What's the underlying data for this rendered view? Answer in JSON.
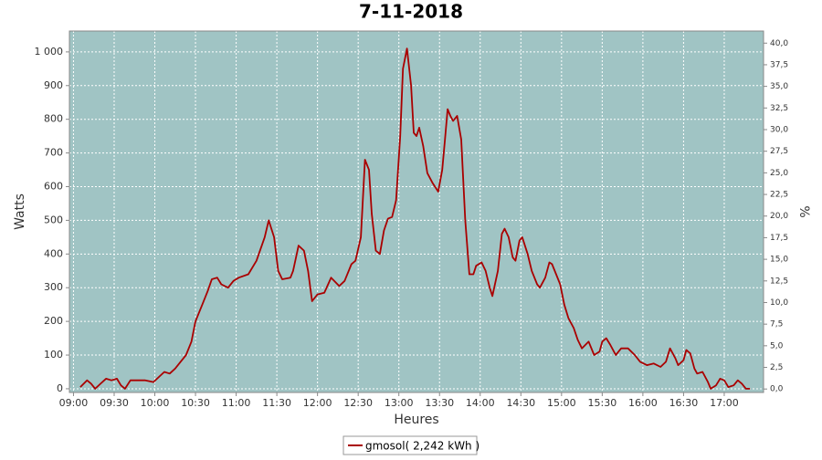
{
  "chart_data": {
    "type": "line",
    "title": "7-11-2018",
    "x_label": "Heures",
    "y_label": "Watts",
    "y2_label": "%",
    "plot_background": "#a0c4c4",
    "grid": true,
    "x": [
      "09:05",
      "09:10",
      "09:13",
      "09:16",
      "09:20",
      "09:24",
      "09:28",
      "09:32",
      "09:35",
      "09:38",
      "09:42",
      "09:47",
      "09:53",
      "09:59",
      "10:03",
      "10:07",
      "10:11",
      "10:15",
      "10:19",
      "10:23",
      "10:27",
      "10:30",
      "10:35",
      "10:39",
      "10:42",
      "10:46",
      "10:49",
      "10:54",
      "10:58",
      "11:02",
      "11:09",
      "11:15",
      "11:21",
      "11:24",
      "11:28",
      "11:31",
      "11:34",
      "11:40",
      "11:42",
      "11:46",
      "11:50",
      "11:53",
      "11:56",
      "12:00",
      "12:05",
      "12:10",
      "12:16",
      "12:20",
      "12:25",
      "12:28",
      "12:32",
      "12:35",
      "12:38",
      "12:40",
      "12:43",
      "12:46",
      "12:49",
      "12:52",
      "12:55",
      "12:58",
      "13:01",
      "13:03",
      "13:06",
      "13:09",
      "13:11",
      "13:13",
      "13:15",
      "13:18",
      "13:21",
      "13:25",
      "13:29",
      "13:32",
      "13:34",
      "13:36",
      "13:38",
      "13:40",
      "13:43",
      "13:46",
      "13:49",
      "13:52",
      "13:55",
      "13:57",
      "14:01",
      "14:04",
      "14:07",
      "14:09",
      "14:13",
      "14:16",
      "14:18",
      "14:21",
      "14:24",
      "14:26",
      "14:29",
      "14:31",
      "14:35",
      "14:38",
      "14:42",
      "14:44",
      "14:48",
      "14:51",
      "14:53",
      "14:56",
      "14:59",
      "15:02",
      "15:05",
      "15:09",
      "15:12",
      "15:15",
      "15:20",
      "15:24",
      "15:28",
      "15:30",
      "15:33",
      "15:36",
      "15:40",
      "15:44",
      "15:49",
      "15:54",
      "15:58",
      "16:03",
      "16:08",
      "16:13",
      "16:17",
      "16:20",
      "16:24",
      "16:26",
      "16:30",
      "16:32",
      "16:35",
      "16:38",
      "16:40",
      "16:44",
      "16:48",
      "16:50",
      "16:54",
      "16:57",
      "17:00",
      "17:03",
      "17:07",
      "17:10",
      "17:13",
      "17:16",
      "17:19"
    ],
    "series": [
      {
        "name": "gmosol( 2,242 kWh )",
        "color": "#aa0000",
        "values": [
          5,
          25,
          15,
          0,
          15,
          30,
          25,
          30,
          10,
          0,
          25,
          25,
          25,
          20,
          35,
          50,
          45,
          60,
          80,
          100,
          140,
          200,
          250,
          290,
          325,
          330,
          310,
          300,
          320,
          330,
          340,
          380,
          450,
          500,
          450,
          350,
          325,
          330,
          350,
          425,
          410,
          350,
          260,
          280,
          285,
          330,
          305,
          320,
          370,
          380,
          450,
          680,
          650,
          520,
          410,
          400,
          470,
          505,
          510,
          560,
          750,
          950,
          1010,
          900,
          760,
          750,
          775,
          720,
          640,
          610,
          585,
          650,
          740,
          830,
          810,
          795,
          810,
          740,
          500,
          340,
          340,
          365,
          375,
          350,
          300,
          275,
          350,
          460,
          475,
          450,
          390,
          380,
          440,
          450,
          400,
          350,
          310,
          300,
          330,
          375,
          370,
          340,
          310,
          250,
          210,
          180,
          145,
          120,
          140,
          100,
          110,
          140,
          150,
          130,
          100,
          120,
          120,
          100,
          80,
          70,
          75,
          65,
          80,
          120,
          90,
          70,
          85,
          115,
          105,
          60,
          45,
          50,
          20,
          0,
          10,
          30,
          25,
          5,
          10,
          25,
          15,
          0,
          0
        ]
      }
    ],
    "xlim": [
      "08:57",
      "17:29"
    ],
    "xticks": [
      "09:00",
      "09:30",
      "10:00",
      "10:30",
      "11:00",
      "11:30",
      "12:00",
      "12:30",
      "13:00",
      "13:30",
      "14:00",
      "14:30",
      "15:00",
      "15:30",
      "16:00",
      "16:30",
      "17:00"
    ],
    "ylim": [
      -11,
      1062
    ],
    "yticks": [
      0,
      100,
      200,
      300,
      400,
      500,
      600,
      700,
      800,
      900,
      {
        "value": 1000,
        "label": "1 000"
      }
    ],
    "y2lim": [
      -0.4,
      41.4
    ],
    "y2ticks": [
      {
        "value": 0,
        "label": "0,0"
      },
      {
        "value": 2.5,
        "label": "2,5"
      },
      {
        "value": 5,
        "label": "5,0"
      },
      {
        "value": 7.5,
        "label": "7,5"
      },
      {
        "value": 10,
        "label": "10,0"
      },
      {
        "value": 12.5,
        "label": "12,5"
      },
      {
        "value": 15,
        "label": "15,0"
      },
      {
        "value": 17.5,
        "label": "17,5"
      },
      {
        "value": 20,
        "label": "20,0"
      },
      {
        "value": 22.5,
        "label": "22,5"
      },
      {
        "value": 25,
        "label": "25,0"
      },
      {
        "value": 27.5,
        "label": "27,5"
      },
      {
        "value": 30,
        "label": "30,0"
      },
      {
        "value": 32.5,
        "label": "32,5"
      },
      {
        "value": 35,
        "label": "35,0"
      },
      {
        "value": 37.5,
        "label": "37,5"
      },
      {
        "value": 40,
        "label": "40,0"
      }
    ]
  }
}
